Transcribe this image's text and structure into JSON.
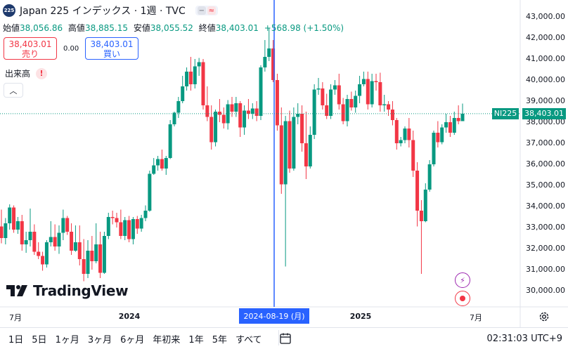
{
  "header": {
    "symbol_badge": "225",
    "title": "Japan 225 インデックス · 1週 · TVC",
    "ohlc": [
      {
        "key": "始値",
        "value": "38,056.86"
      },
      {
        "key": "高値",
        "value": "38,885.15"
      },
      {
        "key": "安値",
        "value": "38,055.52"
      },
      {
        "key": "終値",
        "value": "38,403.01"
      }
    ],
    "change": "+568.98 (+1.50%)",
    "sell_price": "38,403.01",
    "sell_label": "売り",
    "spread": "0.00",
    "buy_price": "38,403.01",
    "buy_label": "買い",
    "volume_label": "出来高",
    "warning_icon": "!"
  },
  "logo_text": "TradingView",
  "price_tag_name": "NI225",
  "price_tag_value": "38,403.01",
  "crosshair_x_label": "2024-08-19 (月)",
  "x_axis_labels": [
    {
      "text": "7月",
      "bold": false
    },
    {
      "text": "2024",
      "bold": true
    },
    {
      "text": "2025",
      "bold": true
    },
    {
      "text": "7月",
      "bold": false
    }
  ],
  "bottom_bar": {
    "ranges": [
      "1日",
      "5日",
      "1ヶ月",
      "3ヶ月",
      "6ヶ月",
      "年初来",
      "1年",
      "5年",
      "すべて"
    ],
    "time": "02:31:03 UTC+9"
  },
  "colors": {
    "up": "#089981",
    "down": "#f23645",
    "crosshair": "#2962ff"
  },
  "chart_data": {
    "type": "candlestick",
    "title": "Japan 225 インデックス · 1週 · TVC",
    "y_range": [
      29500,
      43300
    ],
    "y_ticks": [
      "43,000.00",
      "42,000.00",
      "41,000.00",
      "40,000.00",
      "39,000.00",
      "38,000.00",
      "37,000.00",
      "36,000.00",
      "35,000.00",
      "34,000.00",
      "33,000.00",
      "32,000.00",
      "31,000.00",
      "30,000.00"
    ],
    "last_price": 38403.01,
    "candles": [
      [
        33050,
        33850,
        32250,
        32500
      ],
      [
        32500,
        33450,
        32200,
        33200
      ],
      [
        33200,
        34100,
        32900,
        33950
      ],
      [
        33950,
        34050,
        32750,
        32900
      ],
      [
        32900,
        33500,
        32700,
        33300
      ],
      [
        33300,
        33600,
        31900,
        32200
      ],
      [
        32200,
        32800,
        31800,
        32400
      ],
      [
        32400,
        33900,
        32100,
        32800
      ],
      [
        32800,
        33150,
        31700,
        31850
      ],
      [
        31850,
        32300,
        31500,
        31650
      ],
      [
        31650,
        31850,
        30950,
        31250
      ],
      [
        31250,
        32400,
        31100,
        32300
      ],
      [
        32300,
        33300,
        32100,
        32550
      ],
      [
        32550,
        33150,
        31900,
        32100
      ],
      [
        32100,
        33100,
        31750,
        32750
      ],
      [
        32750,
        33850,
        32400,
        33450
      ],
      [
        33450,
        33550,
        32650,
        32800
      ],
      [
        32800,
        33200,
        31700,
        31900
      ],
      [
        31900,
        33100,
        31850,
        32300
      ],
      [
        32300,
        33100,
        31200,
        31500
      ],
      [
        31500,
        32450,
        30450,
        30800
      ],
      [
        30800,
        32400,
        30600,
        31900
      ],
      [
        31900,
        32600,
        31000,
        31400
      ],
      [
        31400,
        33200,
        31300,
        32200
      ],
      [
        32200,
        32800,
        30600,
        30850
      ],
      [
        30850,
        32800,
        30800,
        32600
      ],
      [
        32600,
        33700,
        32450,
        33500
      ],
      [
        33500,
        33800,
        33150,
        33450
      ],
      [
        33450,
        33700,
        33000,
        33250
      ],
      [
        33250,
        33850,
        32450,
        32600
      ],
      [
        32600,
        33500,
        32400,
        33350
      ],
      [
        33350,
        33550,
        32300,
        32450
      ],
      [
        32450,
        33500,
        32200,
        33400
      ],
      [
        33400,
        33550,
        32700,
        32950
      ],
      [
        32950,
        33600,
        32800,
        33450
      ],
      [
        33450,
        34050,
        33300,
        33800
      ],
      [
        33800,
        35700,
        33750,
        35550
      ],
      [
        35550,
        36300,
        35500,
        35950
      ],
      [
        35950,
        36400,
        35700,
        36250
      ],
      [
        36250,
        36700,
        35700,
        35800
      ],
      [
        35800,
        36400,
        35500,
        36300
      ],
      [
        36300,
        38100,
        36250,
        37900
      ],
      [
        37900,
        38500,
        37800,
        38450
      ],
      [
        38450,
        39200,
        38200,
        39000
      ],
      [
        39000,
        40200,
        38900,
        39700
      ],
      [
        39700,
        40600,
        39500,
        40400
      ],
      [
        40400,
        41100,
        39500,
        39800
      ],
      [
        39800,
        41000,
        39600,
        40650
      ],
      [
        40650,
        41050,
        40200,
        40850
      ],
      [
        40850,
        41000,
        38600,
        38800
      ],
      [
        38800,
        39700,
        38050,
        38250
      ],
      [
        38250,
        38800,
        36700,
        37050
      ],
      [
        37050,
        38600,
        36850,
        38500
      ],
      [
        38500,
        39100,
        38000,
        38350
      ],
      [
        38350,
        38700,
        37700,
        37950
      ],
      [
        37950,
        39050,
        37650,
        38850
      ],
      [
        38850,
        39200,
        38250,
        38500
      ],
      [
        38500,
        39200,
        38250,
        38900
      ],
      [
        38900,
        39000,
        37300,
        37750
      ],
      [
        37750,
        38800,
        37400,
        38550
      ],
      [
        38550,
        39100,
        38150,
        38400
      ],
      [
        38400,
        38900,
        38150,
        38650
      ],
      [
        38650,
        39000,
        38050,
        38300
      ],
      [
        38300,
        40700,
        38100,
        40600
      ],
      [
        40600,
        41900,
        40400,
        41100
      ],
      [
        41100,
        42450,
        40900,
        41500
      ],
      [
        41500,
        41900,
        39900,
        40000
      ],
      [
        40000,
        40300,
        37600,
        37850
      ],
      [
        37850,
        38700,
        34600,
        35050
      ],
      [
        35050,
        38300,
        31150,
        38050
      ],
      [
        38050,
        38550,
        35600,
        35800
      ],
      [
        35800,
        38700,
        35700,
        38250
      ],
      [
        38250,
        38900,
        37900,
        38400
      ],
      [
        38400,
        38800,
        36600,
        37000
      ],
      [
        37000,
        38500,
        35300,
        35900
      ],
      [
        35900,
        37800,
        35800,
        37400
      ],
      [
        37400,
        39800,
        37200,
        39550
      ],
      [
        39550,
        40100,
        39300,
        39600
      ],
      [
        39600,
        39900,
        38600,
        38800
      ],
      [
        38800,
        39350,
        38150,
        38300
      ],
      [
        38300,
        39800,
        38150,
        39550
      ],
      [
        39550,
        40000,
        39300,
        39750
      ],
      [
        39750,
        40300,
        38600,
        38850
      ],
      [
        38850,
        39150,
        37900,
        38050
      ],
      [
        38050,
        39300,
        37800,
        39100
      ],
      [
        39100,
        39450,
        38550,
        38700
      ],
      [
        38700,
        39500,
        38450,
        39250
      ],
      [
        39250,
        40200,
        38900,
        39800
      ],
      [
        39800,
        40400,
        39700,
        40050
      ],
      [
        40050,
        40400,
        38600,
        38850
      ],
      [
        38850,
        40300,
        38700,
        39950
      ],
      [
        39950,
        40300,
        39500,
        39900
      ],
      [
        39900,
        40350,
        38500,
        38800
      ],
      [
        38800,
        39300,
        38500,
        38850
      ],
      [
        38850,
        39000,
        38300,
        38600
      ],
      [
        38600,
        39000,
        37850,
        38100
      ],
      [
        38100,
        38200,
        36700,
        37000
      ],
      [
        37000,
        37300,
        36850,
        37150
      ],
      [
        37150,
        37800,
        37000,
        37700
      ],
      [
        37700,
        38200,
        36800,
        37150
      ],
      [
        37150,
        37600,
        35400,
        35700
      ],
      [
        35700,
        36100,
        33050,
        33800
      ],
      [
        33800,
        34300,
        30800,
        33300
      ],
      [
        33300,
        35100,
        33250,
        34800
      ],
      [
        34800,
        36200,
        34700,
        36000
      ],
      [
        36000,
        37600,
        35900,
        37500
      ],
      [
        37500,
        38050,
        36800,
        37050
      ],
      [
        37050,
        37900,
        36950,
        37750
      ],
      [
        37750,
        38400,
        37500,
        38000
      ],
      [
        38000,
        38300,
        37300,
        37500
      ],
      [
        37500,
        38500,
        37400,
        38200
      ],
      [
        38200,
        38800,
        37900,
        38050
      ],
      [
        38050,
        38885,
        38055,
        38403
      ]
    ]
  }
}
